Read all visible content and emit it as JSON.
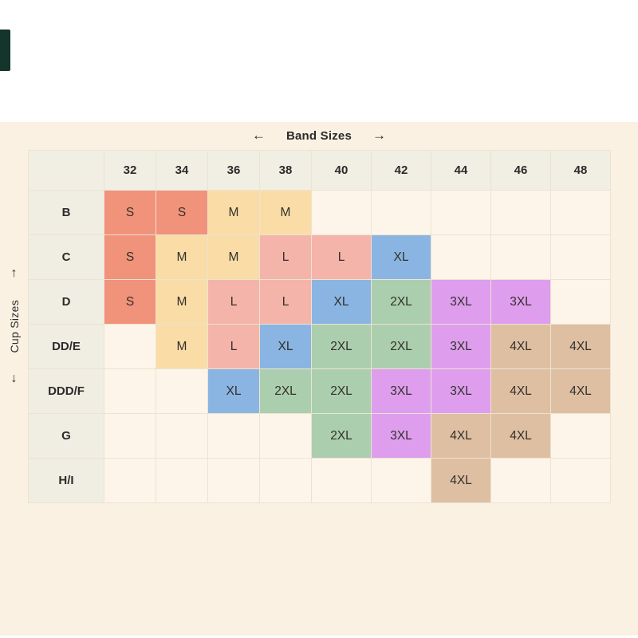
{
  "axes": {
    "band_label": "Band Sizes",
    "band_arrow_left": "←",
    "band_arrow_right": "→",
    "cup_label": "Cup Sizes",
    "cup_arrow_up": "↑",
    "cup_arrow_down": "↓"
  },
  "chart_data": {
    "type": "table",
    "x_axis_label": "Band Sizes",
    "y_axis_label": "Cup Sizes",
    "columns": [
      "32",
      "34",
      "36",
      "38",
      "40",
      "42",
      "44",
      "46",
      "48"
    ],
    "rows": [
      {
        "cup": "B",
        "values": [
          "S",
          "S",
          "M",
          "M",
          "",
          "",
          "",
          "",
          ""
        ]
      },
      {
        "cup": "C",
        "values": [
          "S",
          "M",
          "M",
          "L",
          "L",
          "XL",
          "",
          "",
          ""
        ]
      },
      {
        "cup": "D",
        "values": [
          "S",
          "M",
          "L",
          "L",
          "XL",
          "2XL",
          "3XL",
          "3XL",
          ""
        ]
      },
      {
        "cup": "DD/E",
        "values": [
          "",
          "M",
          "L",
          "XL",
          "2XL",
          "2XL",
          "3XL",
          "4XL",
          "4XL"
        ]
      },
      {
        "cup": "DDD/F",
        "values": [
          "",
          "",
          "XL",
          "2XL",
          "2XL",
          "3XL",
          "3XL",
          "4XL",
          "4XL"
        ]
      },
      {
        "cup": "G",
        "values": [
          "",
          "",
          "",
          "",
          "2XL",
          "3XL",
          "4XL",
          "4XL",
          ""
        ]
      },
      {
        "cup": "H/I",
        "values": [
          "",
          "",
          "",
          "",
          "",
          "",
          "4XL",
          "",
          ""
        ]
      }
    ],
    "size_colors": {
      "S": "#f1927b",
      "M": "#fadca6",
      "L": "#f5b4aa",
      "XL": "#8ab5e2",
      "2XL": "#abcfae",
      "3XL": "#de9eed",
      "4XL": "#dfbfa2"
    },
    "grid": true,
    "legend_position": "none"
  },
  "colors": {
    "page_bg": "#ffffff",
    "panel_bg": "#faf1e3",
    "header_bg": "#f1eee3",
    "label_col_bg": "#f0ede2",
    "empty_cell_bg": "#fdf5e9",
    "grid_line": "#ece3d2",
    "text": "#2b2b2b",
    "dark_bar": "#14352c"
  }
}
